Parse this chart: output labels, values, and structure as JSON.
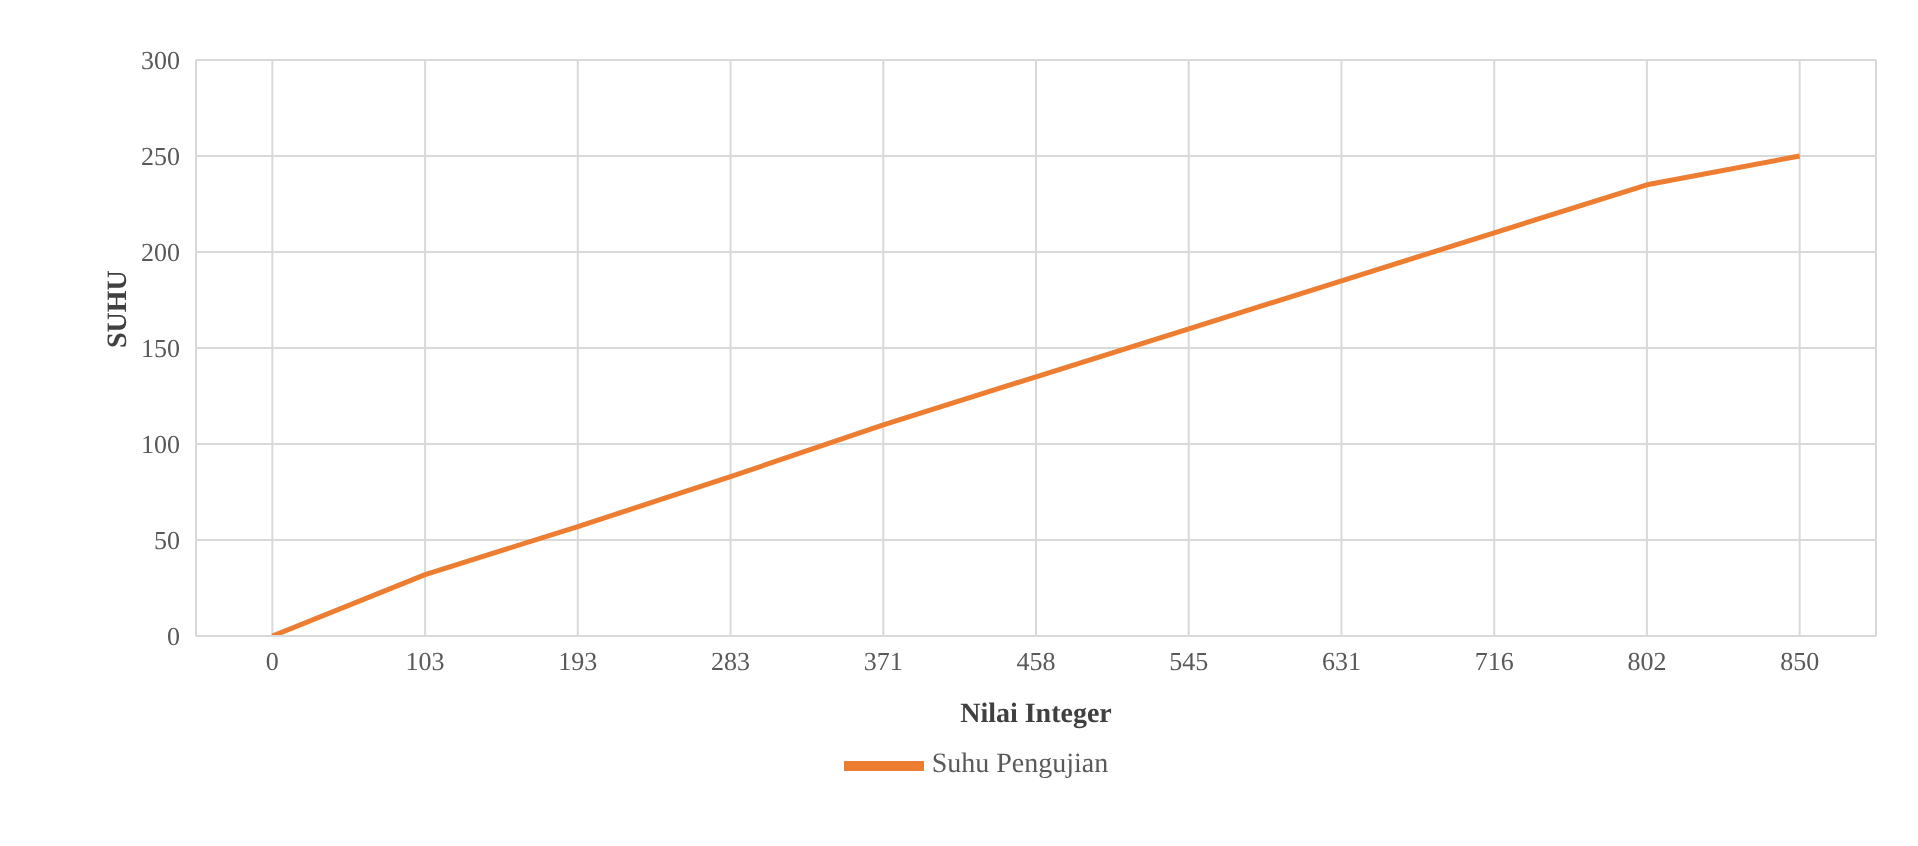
{
  "chart_data": {
    "type": "line",
    "xlabel": "Nilai Integer",
    "ylabel": "SUHU",
    "categories": [
      "0",
      "103",
      "193",
      "283",
      "371",
      "458",
      "545",
      "631",
      "716",
      "802",
      "850"
    ],
    "series": [
      {
        "name": "Suhu Pengujian",
        "color": "#ed7d31",
        "values": [
          0,
          32,
          57,
          83,
          110,
          135,
          160,
          185,
          210,
          235,
          250
        ]
      }
    ],
    "ylim": [
      0,
      300
    ],
    "yticks": [
      0,
      50,
      100,
      150,
      200,
      250,
      300
    ],
    "grid": true,
    "legend": "bottom",
    "marker": "none",
    "line_style": "solid"
  }
}
